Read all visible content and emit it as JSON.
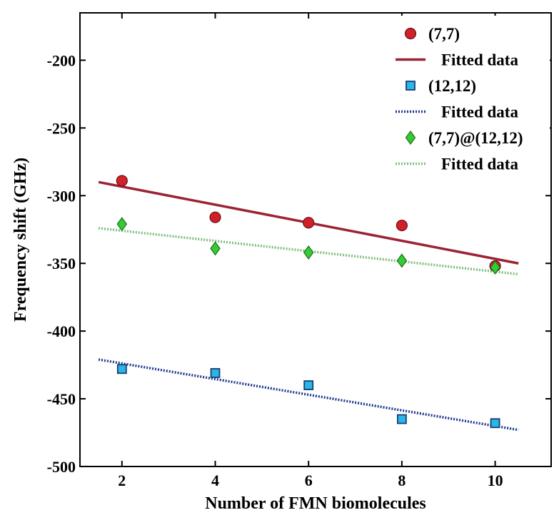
{
  "chart_data": {
    "type": "scatter",
    "xlabel": "Number of FMN biomolecules",
    "ylabel": "Frequency shift (GHz)",
    "xlim": [
      1.1,
      11.2
    ],
    "ylim": [
      -500,
      -165
    ],
    "xticks": [
      2,
      4,
      6,
      8,
      10
    ],
    "yticks": [
      -500,
      -450,
      -400,
      -350,
      -300,
      -250,
      -200
    ],
    "xtick_labels": [
      "2",
      "4",
      "6",
      "8",
      "10"
    ],
    "ytick_labels": [
      "-500",
      "-450",
      "-400",
      "-350",
      "-300",
      "-250",
      "-200"
    ],
    "grid": false,
    "legend_position": "top-right",
    "series": [
      {
        "name": "(7,7)",
        "marker": "circle",
        "color": "#d0202a",
        "x": [
          2,
          4,
          6,
          8,
          10
        ],
        "y": [
          -289,
          -316,
          -320,
          -322,
          -352
        ],
        "fit": {
          "name": "Fitted data",
          "style": "solid",
          "color": "#9b2335",
          "x": [
            1.5,
            10.5
          ],
          "y": [
            -290,
            -350
          ]
        }
      },
      {
        "name": "(12,12)",
        "marker": "square",
        "color": "#29b6e8",
        "x": [
          2,
          4,
          6,
          8,
          10
        ],
        "y": [
          -428,
          -431,
          -440,
          -465,
          -468
        ],
        "fit": {
          "name": "Fitted data",
          "style": "dotted",
          "color": "#1f3a93",
          "x": [
            1.5,
            10.5
          ],
          "y": [
            -421,
            -473
          ]
        }
      },
      {
        "name": "(7,7)@(12,12)",
        "marker": "diamond",
        "color": "#33cc33",
        "x": [
          2,
          4,
          6,
          8,
          10
        ],
        "y": [
          -321,
          -339,
          -342,
          -348,
          -353
        ],
        "fit": {
          "name": "Fitted data",
          "style": "dotted",
          "color": "#7fbf7f",
          "x": [
            1.5,
            10.5
          ],
          "y": [
            -324,
            -358
          ]
        }
      }
    ]
  }
}
